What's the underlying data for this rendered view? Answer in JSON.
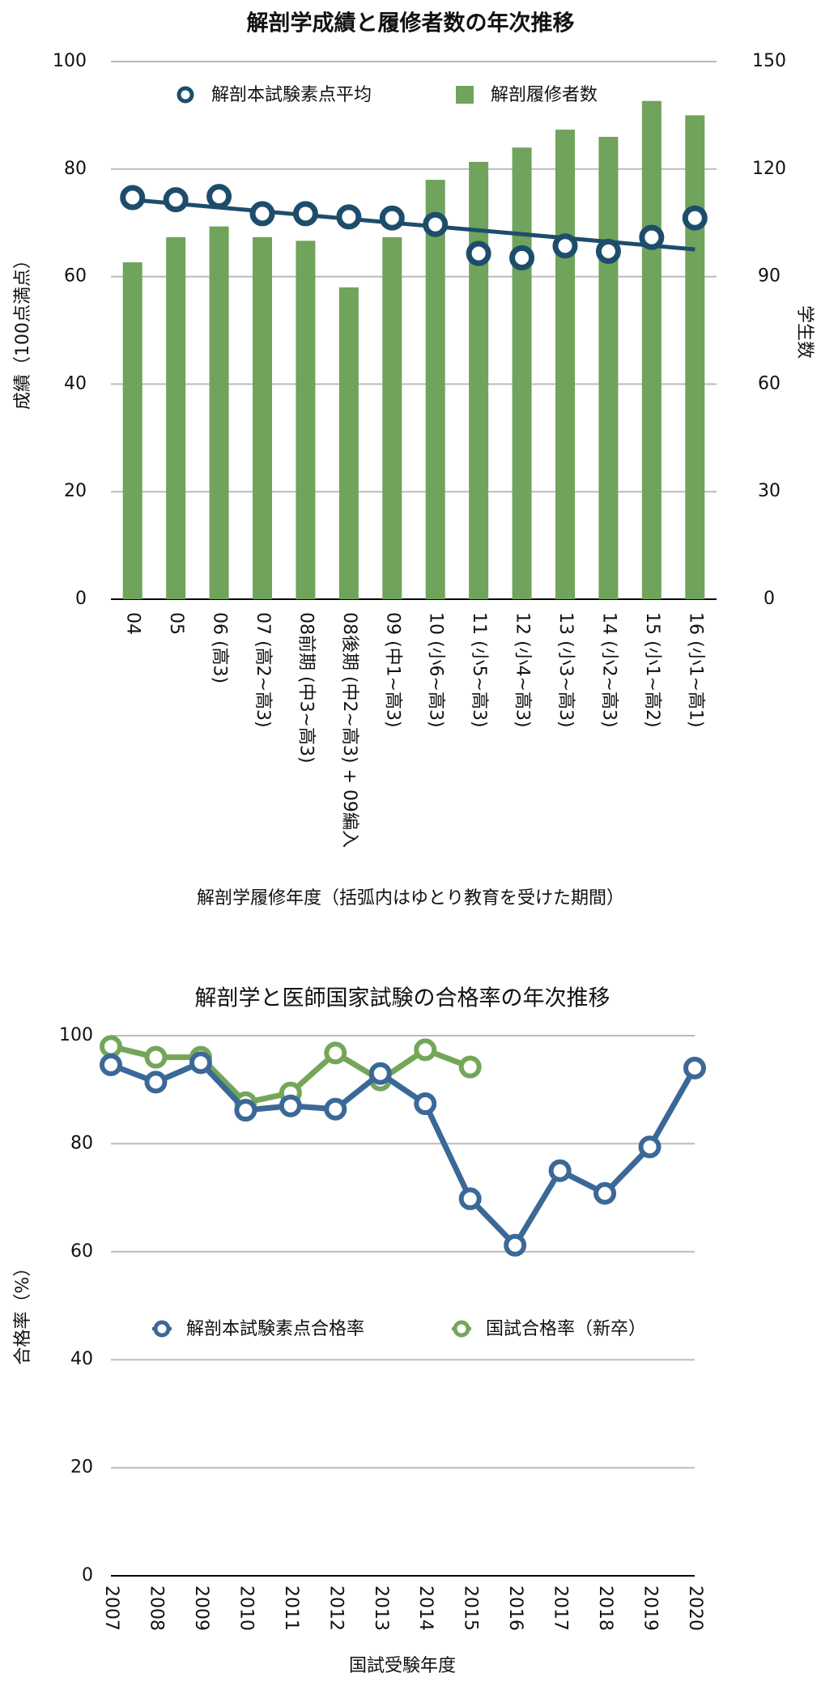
{
  "chart_data": [
    {
      "type": "combo",
      "title": "解剖学成績と履修者数の年次推移",
      "xlabel": "解剖学履修年度（括弧内はゆとり教育を受けた期間）",
      "ylabel": "成績（100点満点）",
      "y2label": "学生数",
      "categories": [
        "04",
        "05",
        "06 (高3)",
        "07 (高2~高3)",
        "08前期 (中3~高3)",
        "08後期 (中2~高3) + 09編入",
        "09 (中1~高3)",
        "10 (小6~高3)",
        "11 (小5~高3)",
        "12 (小4~高3)",
        "13 (小3~高3)",
        "14 (小2~高3)",
        "15 (小1~高2)",
        "16 (小1~高1)"
      ],
      "series": [
        {
          "name": "解剖本試験素点平均",
          "color": "#1d4d6b",
          "type": "scatter",
          "values": [
            74.7,
            74.3,
            74.9,
            71.7,
            71.7,
            71.1,
            70.9,
            69.7,
            64.3,
            63.5,
            65.7,
            64.7,
            67.3,
            70.9
          ]
        },
        {
          "name": "解剖履修者数",
          "color": "#70a35b",
          "type": "bar",
          "axis": "y2",
          "values": [
            94,
            101,
            104,
            101,
            100,
            87,
            101,
            117,
            122,
            126,
            131,
            129,
            139,
            135
          ]
        }
      ],
      "ylim": [
        0,
        100
      ],
      "yticks": [
        0,
        20,
        40,
        60,
        80,
        100
      ],
      "y2lim": [
        0,
        150
      ],
      "y2ticks": [
        0,
        30,
        60,
        90,
        120,
        150
      ],
      "grid": true,
      "trendline": true,
      "legend": "top"
    },
    {
      "type": "line",
      "title": "解剖学と医師国家試験の合格率の年次推移",
      "xlabel": "国試受験年度",
      "ylabel": "合格率（%）",
      "categories": [
        "2007",
        "2008",
        "2009",
        "2010",
        "2011",
        "2012",
        "2013",
        "2014",
        "2015",
        "2016",
        "2017",
        "2018",
        "2019",
        "2020"
      ],
      "series": [
        {
          "name": "解剖本試験素点合格率",
          "color": "#3b6997",
          "values": [
            94.6,
            91.4,
            95,
            86.2,
            87,
            86.4,
            93,
            87.4,
            69.8,
            61.2,
            75,
            70.8,
            79.4,
            94
          ]
        },
        {
          "name": "国試合格率（新卒）",
          "color": "#74a65a",
          "values": [
            98,
            96,
            96,
            87.6,
            89.4,
            96.8,
            91.8,
            97.4,
            94.2,
            null,
            null,
            null,
            null,
            null
          ]
        }
      ],
      "ylim": [
        0,
        100
      ],
      "yticks": [
        0,
        20,
        40,
        60,
        80,
        100
      ],
      "grid": true,
      "legend": "center"
    }
  ]
}
